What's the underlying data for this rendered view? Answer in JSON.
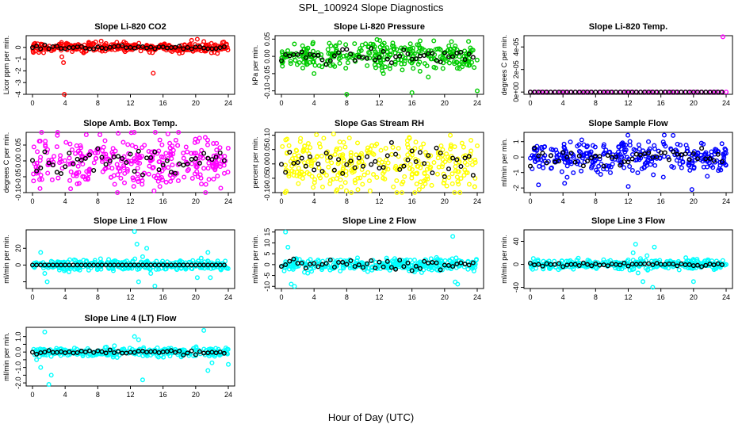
{
  "title": "SPL_100924  Slope Diagnostics",
  "xlabel": "Hour of Day (UTC)",
  "colors": {
    "black": "#000000",
    "red": "#ff0000",
    "green": "#00cc00",
    "magenta": "#ff00ff",
    "yellow": "#ffff00",
    "blue": "#0000ff",
    "cyan": "#00ffff"
  },
  "chart_data": [
    {
      "type": "scatter",
      "title": "Slope Li-820 CO2",
      "ylabel": "Licor ppm per min.",
      "color": "red",
      "xlim": [
        0,
        24
      ],
      "xticks": [
        "0",
        "4",
        "8",
        "12",
        "16",
        "20",
        "24"
      ],
      "ylim": [
        -4,
        1
      ],
      "yticks": [
        -4,
        -3,
        -2,
        -1,
        0
      ],
      "ytick_labels": [
        "-4",
        "-3",
        "-2",
        "-1",
        "0"
      ],
      "center": 0,
      "spread": 0.2,
      "black_spread": 0.08,
      "outliers": [
        [
          0.2,
          0.3
        ],
        [
          3.6,
          -0.8
        ],
        [
          3.8,
          -1.3
        ],
        [
          3.9,
          -4.0
        ],
        [
          14.8,
          -2.2
        ],
        [
          17.8,
          -0.3
        ],
        [
          19.5,
          0.6
        ],
        [
          20.2,
          0.7
        ],
        [
          21.0,
          0.5
        ]
      ]
    },
    {
      "type": "scatter",
      "title": "Slope Li-820 Pressure",
      "ylabel": "kPa per min.",
      "color": "green",
      "xlim": [
        0,
        24
      ],
      "xticks": [
        "0",
        "4",
        "8",
        "12",
        "16",
        "20",
        "24"
      ],
      "ylim": [
        -0.11,
        0.06
      ],
      "yticks": [
        -0.1,
        -0.05,
        0,
        0.05
      ],
      "ytick_labels": [
        "-0.10",
        "-0.05",
        "0.00",
        "0.05"
      ],
      "center": 0,
      "spread": 0.02,
      "black_spread": 0.01,
      "outliers": [
        [
          4.0,
          -0.05
        ],
        [
          8.0,
          -0.11
        ],
        [
          12.5,
          -0.05
        ],
        [
          16.0,
          -0.105
        ],
        [
          17.0,
          0.045
        ],
        [
          18.0,
          -0.06
        ],
        [
          24.0,
          -0.1
        ]
      ]
    },
    {
      "type": "scatter",
      "title": "Slope Li-820 Temp.",
      "ylabel": "degrees C per min.",
      "color": "magenta",
      "xlim": [
        0,
        24
      ],
      "xticks": [
        "0",
        "4",
        "8",
        "12",
        "16",
        "20",
        "24"
      ],
      "ylim": [
        -2e-06,
        5e-05
      ],
      "yticks": [
        0,
        2e-05,
        4e-05
      ],
      "ytick_labels": [
        "0e+00",
        "2e-05",
        "4e-05"
      ],
      "center": 0,
      "spread": 0,
      "black_spread": 0,
      "sparse": true,
      "outliers": [
        [
          23.6,
          4.9e-05
        ]
      ]
    },
    {
      "type": "scatter",
      "title": "Slope Amb. Box Temp.",
      "ylabel": "degrees C per min.",
      "color": "magenta",
      "xlim": [
        0,
        24
      ],
      "xticks": [
        "0",
        "4",
        "8",
        "12",
        "16",
        "20",
        "24"
      ],
      "ylim": [
        -0.1,
        0.09
      ],
      "yticks": [
        -0.1,
        -0.05,
        0,
        0.05
      ],
      "ytick_labels": [
        "-0.10",
        "-0.05",
        "0.00",
        "0.05"
      ],
      "center": 0,
      "spread": 0.045,
      "black_spread": 0.02,
      "outliers": []
    },
    {
      "type": "scatter",
      "title": "Slope Gas Stream RH",
      "ylabel": "percent per min.",
      "color": "yellow",
      "xlim": [
        0,
        24
      ],
      "xticks": [
        "0",
        "4",
        "8",
        "12",
        "16",
        "20",
        "24"
      ],
      "ylim": [
        -0.1,
        0.11
      ],
      "yticks": [
        -0.1,
        -0.05,
        0,
        0.05,
        0.1
      ],
      "ytick_labels": [
        "-0.10",
        "-0.05",
        "0.00",
        "0.05",
        "0.10"
      ],
      "center": 0,
      "spread": 0.045,
      "black_spread": 0.03,
      "outliers": []
    },
    {
      "type": "scatter",
      "title": "Slope Sample Flow",
      "ylabel": "ml/min per min.",
      "color": "blue",
      "xlim": [
        0,
        24
      ],
      "xticks": [
        "0",
        "4",
        "8",
        "12",
        "16",
        "20",
        "24"
      ],
      "ylim": [
        -2.3,
        1.6
      ],
      "yticks": [
        -2,
        -1,
        0,
        1
      ],
      "ytick_labels": [
        "-2",
        "-1",
        "0",
        "1"
      ],
      "center": 0,
      "spread": 0.5,
      "black_spread": 0.3,
      "outliers": [
        [
          1.0,
          -1.8
        ],
        [
          4.2,
          -1.7
        ],
        [
          12.0,
          -1.9
        ],
        [
          17.5,
          1.4
        ],
        [
          19.8,
          -2.1
        ],
        [
          16.3,
          -1.3
        ]
      ]
    },
    {
      "type": "scatter",
      "title": "Slope Line 1 Flow",
      "ylabel": "ml/min per min.",
      "color": "cyan",
      "xlim": [
        0,
        24
      ],
      "xticks": [
        "0",
        "4",
        "8",
        "12",
        "16",
        "20",
        "24"
      ],
      "ylim": [
        -28,
        42
      ],
      "yticks": [
        -20,
        0,
        20
      ],
      "ytick_labels": [
        "",
        "0",
        "20"
      ],
      "center": 0,
      "spread": 3,
      "black_spread": 0,
      "outliers": [
        [
          1.0,
          15
        ],
        [
          1.5,
          -10
        ],
        [
          1.8,
          -20
        ],
        [
          12.5,
          40
        ],
        [
          12.8,
          25
        ],
        [
          13.0,
          -20
        ],
        [
          13.5,
          10
        ],
        [
          14.0,
          20
        ],
        [
          14.5,
          -10
        ],
        [
          15.0,
          -25
        ],
        [
          20.2,
          -15
        ],
        [
          21.5,
          15
        ],
        [
          21.8,
          -15
        ]
      ]
    },
    {
      "type": "scatter",
      "title": "Slope Line 2 Flow",
      "ylabel": "ml/min per min.",
      "color": "cyan",
      "xlim": [
        0,
        24
      ],
      "xticks": [
        "0",
        "4",
        "8",
        "12",
        "16",
        "20",
        "24"
      ],
      "ylim": [
        -11,
        16
      ],
      "yticks": [
        -10,
        -5,
        0,
        5,
        10,
        15
      ],
      "ytick_labels": [
        "-10",
        "-5",
        "0",
        "5",
        "10",
        "15"
      ],
      "center": 0,
      "spread": 1.5,
      "black_spread": 1.2,
      "outliers": [
        [
          0.5,
          15
        ],
        [
          0.8,
          8
        ],
        [
          1.2,
          -9
        ],
        [
          1.6,
          -10
        ],
        [
          21.0,
          13
        ],
        [
          21.3,
          -8
        ],
        [
          21.6,
          -9
        ]
      ]
    },
    {
      "type": "scatter",
      "title": "Slope Line 3 Flow",
      "ylabel": "ml/min per min.",
      "color": "cyan",
      "xlim": [
        0,
        24
      ],
      "xticks": [
        "0",
        "4",
        "8",
        "12",
        "16",
        "20",
        "24"
      ],
      "ylim": [
        -42,
        60
      ],
      "yticks": [
        -40,
        0,
        40
      ],
      "ytick_labels": [
        "-40",
        "0",
        "40"
      ],
      "center": 0,
      "spread": 4,
      "black_spread": 2,
      "outliers": [
        [
          12.2,
          -10
        ],
        [
          12.6,
          20
        ],
        [
          12.9,
          35
        ],
        [
          13.2,
          -15
        ],
        [
          13.5,
          10
        ],
        [
          13.8,
          -30
        ],
        [
          14.3,
          15
        ],
        [
          15.0,
          -40
        ],
        [
          15.2,
          30
        ],
        [
          20.0,
          -30
        ]
      ]
    },
    {
      "type": "scatter",
      "title": "Slope Line 4 (LT) Flow",
      "ylabel": "ml/min per min.",
      "color": "cyan",
      "xlim": [
        0,
        24
      ],
      "xticks": [
        "0",
        "4",
        "8",
        "12",
        "16",
        "20",
        "24"
      ],
      "ylim": [
        -2.2,
        1.6
      ],
      "yticks": [
        -2,
        -1.5,
        -1,
        -0.5,
        0,
        0.5,
        1
      ],
      "ytick_labels": [
        "-2.0",
        "",
        "-1.0",
        "",
        "0.0",
        "",
        "1.0"
      ],
      "center": 0,
      "spread": 0.15,
      "black_spread": 0.07,
      "outliers": [
        [
          0.5,
          -0.5
        ],
        [
          1.0,
          -1.0
        ],
        [
          1.5,
          1.3
        ],
        [
          2.0,
          -2.1
        ],
        [
          2.3,
          -1.5
        ],
        [
          12.5,
          1.0
        ],
        [
          13.0,
          0.8
        ],
        [
          13.5,
          -1.8
        ],
        [
          21.0,
          1.4
        ],
        [
          21.5,
          -1.2
        ],
        [
          22.0,
          -0.7
        ],
        [
          24.0,
          -0.8
        ]
      ]
    }
  ]
}
